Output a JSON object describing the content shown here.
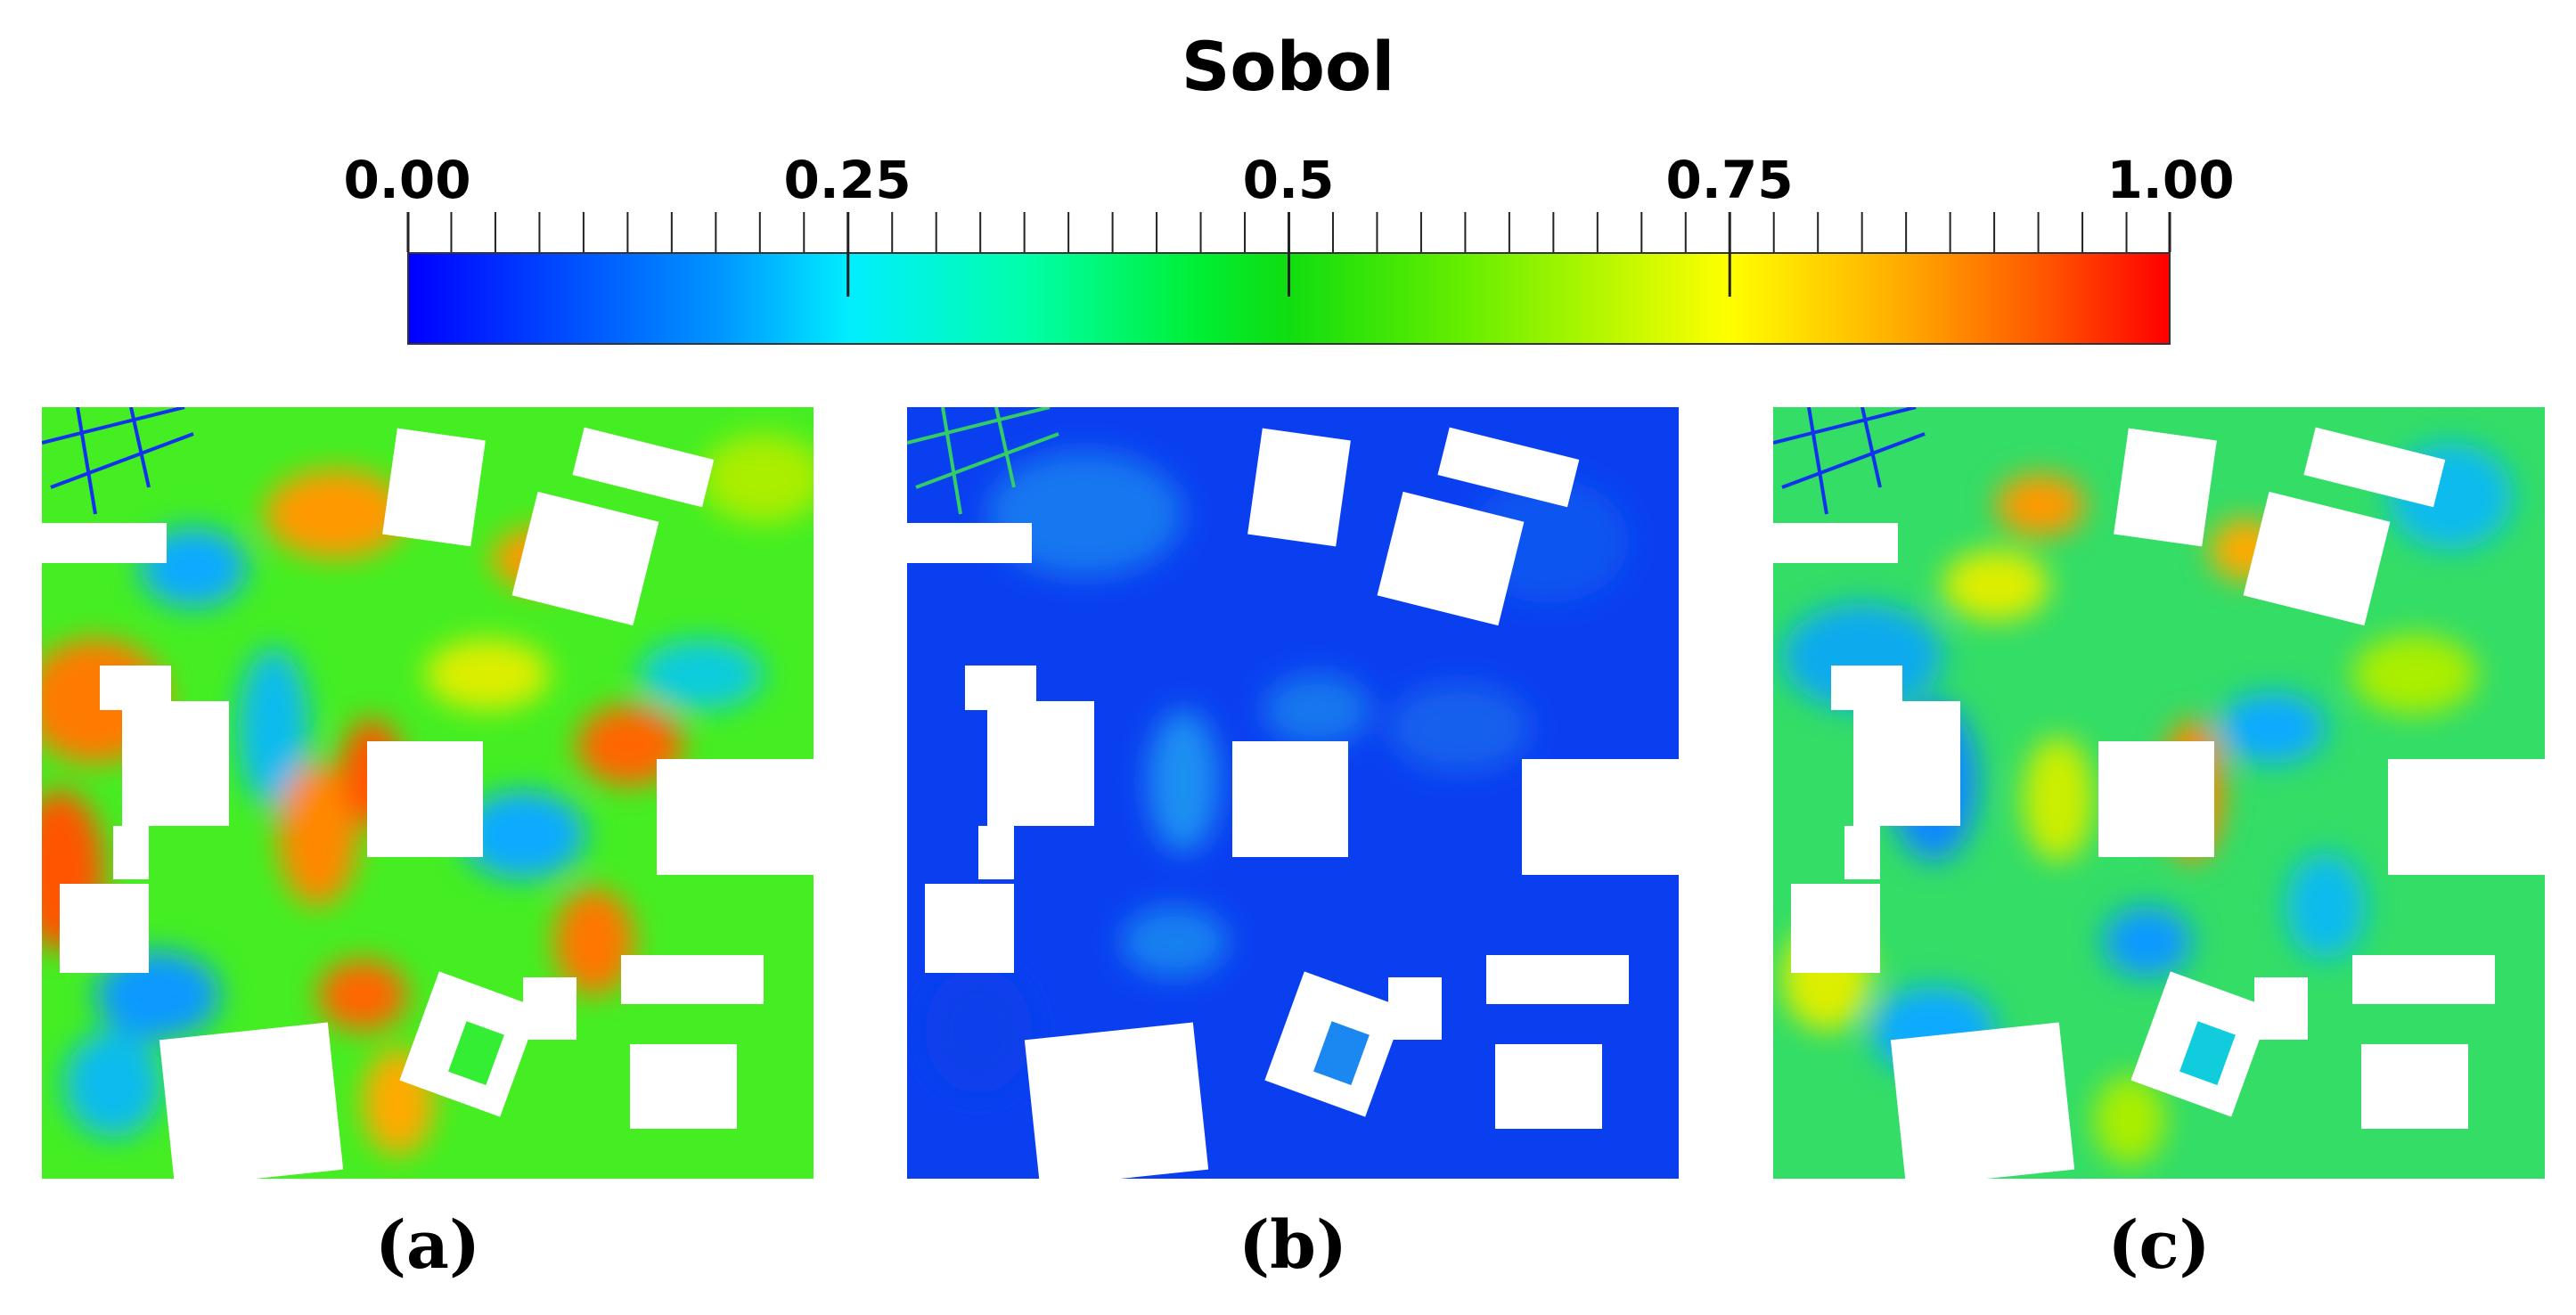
{
  "colorbar": {
    "title": "Sobol",
    "tick_labels": [
      "0.00",
      "0.25",
      "0.5",
      "0.75",
      "1.00"
    ],
    "range": [
      0,
      1
    ],
    "colormap": "rainbow (blue-cyan-green-yellow-red)",
    "colors": [
      "#0000ff",
      "#00eeff",
      "#10dd10",
      "#ffff00",
      "#ff0000"
    ]
  },
  "panels": [
    {
      "label": "(a)",
      "dominant_color": "#44ee22"
    },
    {
      "label": "(b)",
      "dominant_color": "#0a3ff0"
    },
    {
      "label": "(c)",
      "dominant_color": "#33dd66"
    }
  ]
}
